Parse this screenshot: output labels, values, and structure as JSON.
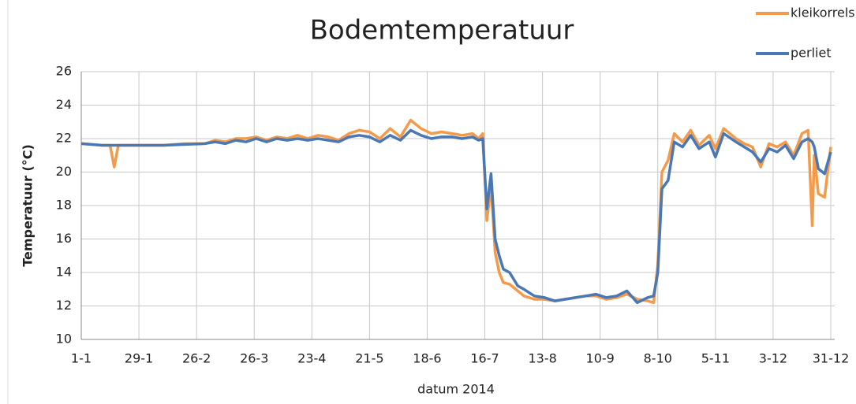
{
  "chart_data": {
    "type": "line",
    "title": "Bodemtemperatuur",
    "x_label": "datum 2014",
    "y_label": "Temperatuur (°C)",
    "x": [
      0,
      10,
      14,
      16,
      18,
      20,
      30,
      40,
      50,
      60,
      65,
      70,
      75,
      80,
      85,
      90,
      95,
      100,
      105,
      110,
      115,
      120,
      125,
      130,
      135,
      140,
      145,
      150,
      155,
      160,
      165,
      170,
      175,
      180,
      185,
      190,
      193,
      195,
      197,
      199,
      201,
      203,
      205,
      208,
      212,
      215,
      220,
      225,
      230,
      235,
      240,
      245,
      250,
      255,
      260,
      265,
      270,
      275,
      278,
      280,
      282,
      285,
      288,
      292,
      296,
      300,
      305,
      308,
      312,
      318,
      322,
      326,
      330,
      334,
      338,
      342,
      346,
      350,
      353,
      355,
      356,
      358,
      361,
      364
    ],
    "series": [
      {
        "name": "kleikorrels",
        "color": "#f39b4a",
        "values": [
          21.7,
          21.6,
          21.6,
          20.3,
          21.6,
          21.6,
          21.6,
          21.6,
          21.7,
          21.7,
          21.9,
          21.8,
          22.0,
          22.0,
          22.1,
          21.9,
          22.1,
          22.0,
          22.2,
          22.0,
          22.2,
          22.1,
          21.9,
          22.3,
          22.5,
          22.4,
          22.0,
          22.6,
          22.1,
          23.1,
          22.6,
          22.3,
          22.4,
          22.3,
          22.2,
          22.3,
          22.0,
          22.3,
          17.1,
          19.2,
          15.2,
          14.0,
          13.4,
          13.3,
          12.9,
          12.6,
          12.4,
          12.4,
          12.3,
          12.4,
          12.5,
          12.6,
          12.6,
          12.4,
          12.5,
          12.7,
          12.4,
          12.3,
          12.2,
          14.5,
          20.0,
          20.7,
          22.3,
          21.8,
          22.5,
          21.6,
          22.2,
          21.4,
          22.6,
          22.0,
          21.7,
          21.5,
          20.3,
          21.7,
          21.5,
          21.8,
          21.0,
          22.3,
          22.5,
          16.8,
          21.0,
          18.7,
          18.5,
          21.5
        ]
      },
      {
        "name": "perliet",
        "color": "#4a78b5",
        "values": [
          21.7,
          21.6,
          21.6,
          21.6,
          21.6,
          21.6,
          21.6,
          21.6,
          21.65,
          21.7,
          21.8,
          21.7,
          21.9,
          21.8,
          22.0,
          21.8,
          22.0,
          21.9,
          22.0,
          21.9,
          22.0,
          21.9,
          21.8,
          22.1,
          22.2,
          22.1,
          21.8,
          22.2,
          21.9,
          22.5,
          22.2,
          22.0,
          22.1,
          22.1,
          22.0,
          22.1,
          21.9,
          22.0,
          17.8,
          19.9,
          16.0,
          15.0,
          14.2,
          14.0,
          13.2,
          13.0,
          12.6,
          12.5,
          12.3,
          12.4,
          12.5,
          12.6,
          12.7,
          12.5,
          12.6,
          12.9,
          12.2,
          12.5,
          12.6,
          14.0,
          19.0,
          19.5,
          21.8,
          21.5,
          22.2,
          21.4,
          21.8,
          20.9,
          22.3,
          21.8,
          21.5,
          21.2,
          20.6,
          21.4,
          21.2,
          21.6,
          20.8,
          21.8,
          22.0,
          21.8,
          21.5,
          20.2,
          19.9,
          21.2
        ]
      }
    ],
    "xlim": [
      0,
      364
    ],
    "xticks": [
      {
        "value": 0,
        "label": "1-1"
      },
      {
        "value": 28,
        "label": "29-1"
      },
      {
        "value": 56,
        "label": "26-2"
      },
      {
        "value": 84,
        "label": "26-3"
      },
      {
        "value": 112,
        "label": "23-4"
      },
      {
        "value": 140,
        "label": "21-5"
      },
      {
        "value": 168,
        "label": "18-6"
      },
      {
        "value": 196,
        "label": "16-7"
      },
      {
        "value": 224,
        "label": "13-8"
      },
      {
        "value": 252,
        "label": "10-9"
      },
      {
        "value": 280,
        "label": "8-10"
      },
      {
        "value": 308,
        "label": "5-11"
      },
      {
        "value": 336,
        "label": "3-12"
      },
      {
        "value": 364,
        "label": "31-12"
      }
    ],
    "ylim": [
      10,
      26
    ],
    "yticks": [
      10,
      12,
      14,
      16,
      18,
      20,
      22,
      24,
      26
    ],
    "grid": true,
    "legend": "top-right"
  }
}
